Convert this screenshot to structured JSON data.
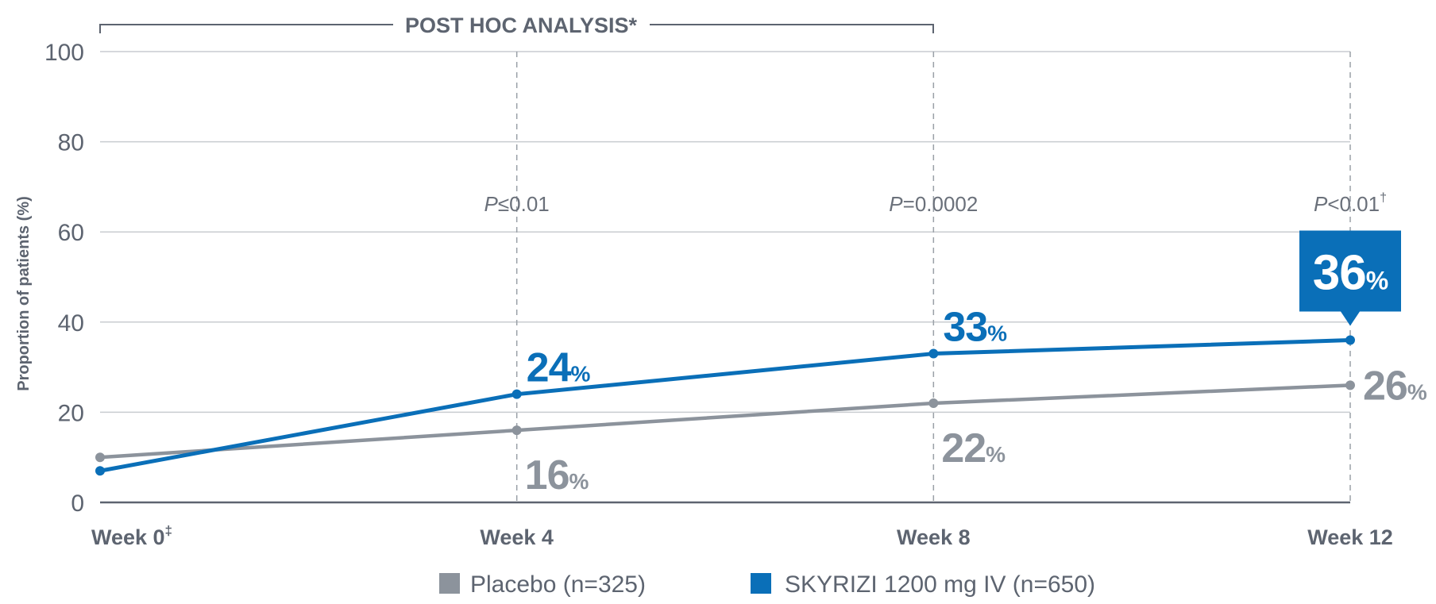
{
  "chart_data": {
    "type": "line",
    "header": "POST HOC ANALYSIS*",
    "ylabel": "Proportion of patients (%)",
    "ylim": [
      0,
      100
    ],
    "yticks": [
      "0",
      "20",
      "40",
      "60",
      "80",
      "100"
    ],
    "categories": [
      "Week 0",
      "Week 4",
      "Week 8",
      "Week 12"
    ],
    "category_marks": [
      "‡",
      "",
      "",
      ""
    ],
    "pvalues": [
      {
        "week": "Week 4",
        "prefix": "P",
        "text": "≤0.01",
        "mark": ""
      },
      {
        "week": "Week 8",
        "prefix": "P",
        "text": "=0.0002",
        "mark": ""
      },
      {
        "week": "Week 12",
        "prefix": "P",
        "text": "<0.01",
        "mark": "†"
      }
    ],
    "percent_sign": "%",
    "series": [
      {
        "name": "Placebo (n=325)",
        "color": "#8c939c",
        "values": [
          10,
          16,
          22,
          26
        ],
        "labels": [
          "",
          "16",
          "22",
          "26"
        ]
      },
      {
        "name": "SKYRIZI 1200 mg IV (n=650)",
        "color": "#0a6fb8",
        "values": [
          7,
          24,
          33,
          36
        ],
        "labels": [
          "",
          "24",
          "33",
          "36"
        ]
      }
    ]
  }
}
